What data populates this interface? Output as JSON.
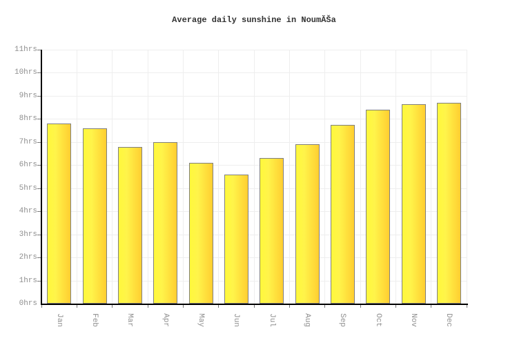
{
  "page": {
    "background": "#ffffff"
  },
  "chart_data": {
    "type": "bar",
    "title": "Average daily sunshine in NoumĂŠa",
    "categories": [
      "Jan",
      "Feb",
      "Mar",
      "Apr",
      "May",
      "Jun",
      "Jul",
      "Aug",
      "Sep",
      "Oct",
      "Nov",
      "Dec"
    ],
    "values": [
      7.8,
      7.6,
      6.8,
      7.0,
      6.1,
      5.6,
      6.3,
      6.9,
      7.75,
      8.4,
      8.65,
      8.7
    ],
    "unit": "hrs",
    "xlabel": "",
    "ylabel": "",
    "ylim": [
      0,
      11
    ],
    "y_tick_step": 1,
    "y_tick_labels": [
      "0hrs",
      "1hrs",
      "2hrs",
      "3hrs",
      "4hrs",
      "5hrs",
      "6hrs",
      "7hrs",
      "8hrs",
      "9hrs",
      "10hrs",
      "11hrs"
    ],
    "grid": "on",
    "legend": "none",
    "colors": {
      "bar_gradient_left": "#fff83c",
      "bar_gradient_right": "#ffce31",
      "bar_border": "#7f7f7f",
      "axis": "#000000",
      "gridline": "#eeeeee",
      "tick": "#777777",
      "tick_label": "#8f8f8f",
      "title": "#333333",
      "background": "#ffffff"
    }
  }
}
